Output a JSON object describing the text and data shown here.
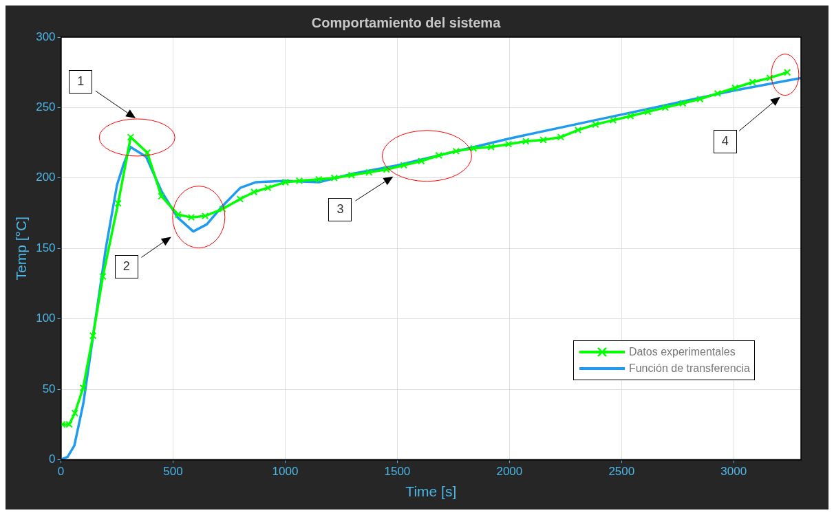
{
  "chart_data": {
    "type": "line",
    "title": "Comportamiento del sistema",
    "xlabel": "Time [s]",
    "ylabel": "Temp [°C]",
    "xlim": [
      0,
      3300
    ],
    "xticks": [
      0,
      500,
      1000,
      1500,
      2000,
      2500,
      3000
    ],
    "ylim": [
      0,
      300
    ],
    "yticks": [
      0,
      50,
      100,
      150,
      200,
      250,
      300
    ],
    "grid": true,
    "legend": "bottom right",
    "line_style": "solid",
    "series": [
      {
        "name": "Datos experimentales",
        "color": "#00ff00",
        "marker": "cross",
        "x": [
          6,
          37,
          62,
          99,
          143,
          187,
          255,
          311,
          385,
          448,
          522,
          581,
          643,
          721,
          799,
          861,
          923,
          1001,
          1063,
          1150,
          1219,
          1296,
          1374,
          1452,
          1529,
          1607,
          1685,
          1762,
          1840,
          1918,
          1996,
          2073,
          2151,
          2229,
          2306,
          2384,
          2462,
          2540,
          2617,
          2695,
          2773,
          2850,
          2928,
          3006,
          3084,
          3161,
          3239
        ],
        "values": [
          25,
          25,
          33,
          51,
          88,
          130,
          182,
          229,
          218,
          187,
          174,
          172,
          173,
          178,
          185,
          190,
          193,
          197,
          198,
          199,
          200,
          202,
          204,
          206,
          209,
          212,
          216,
          219,
          221,
          222,
          224,
          226,
          227,
          229,
          234,
          238,
          241,
          244,
          247,
          250,
          253,
          256,
          260,
          264,
          268,
          271,
          275
        ]
      },
      {
        "name": "Función de transferencia",
        "color": "#1e9bf0",
        "marker": "none",
        "x": [
          0,
          30,
          60,
          100,
          150,
          200,
          250,
          280,
          310,
          380,
          450,
          520,
          590,
          650,
          720,
          800,
          870,
          1000,
          1150,
          1300,
          1500,
          2000,
          2500,
          3000,
          3300
        ],
        "values": [
          0,
          2,
          10,
          40,
          95,
          150,
          195,
          210,
          222,
          215,
          190,
          172,
          162,
          167,
          180,
          193,
          197,
          198,
          197,
          203,
          209,
          228,
          245,
          262,
          271
        ]
      }
    ],
    "annotations": [
      "1",
      "2",
      "3",
      "4"
    ]
  }
}
